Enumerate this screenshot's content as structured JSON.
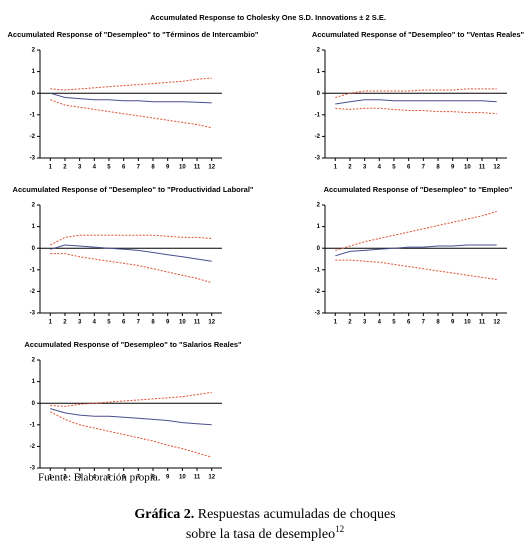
{
  "figure": {
    "title": "Accumulated Response to Cholesky One S.D. Innovations ± 2 S.E.",
    "source": "Fuente: Elaboración propia.",
    "caption_label": "Gráfica 2.",
    "caption_line1": "Respuestas acumuladas de choques",
    "caption_line2": "sobre la tasa de desempleo",
    "caption_note": "12"
  },
  "chart_data": [
    {
      "type": "line",
      "title": "Accumulated Response of \"Desempleo\" to \"Términos de Intercambio\"",
      "x": [
        1,
        2,
        3,
        4,
        5,
        6,
        7,
        8,
        9,
        10,
        11,
        12
      ],
      "xlim": [
        0.3,
        12.7
      ],
      "xticks": [
        1,
        2,
        3,
        4,
        5,
        6,
        7,
        8,
        9,
        10,
        11,
        12
      ],
      "ylim": [
        -3,
        2
      ],
      "yticks": [
        -3,
        -2,
        -1,
        0,
        1,
        2
      ],
      "series": [
        {
          "color": "#4a4f8f",
          "dash": false,
          "values": [
            0,
            -0.2,
            -0.25,
            -0.3,
            -0.3,
            -0.35,
            -0.35,
            -0.4,
            -0.4,
            -0.4,
            -0.42,
            -0.45
          ]
        },
        {
          "color": "#e05030",
          "dash": true,
          "values": [
            0.2,
            0.15,
            0.2,
            0.25,
            0.3,
            0.35,
            0.4,
            0.45,
            0.5,
            0.55,
            0.65,
            0.7
          ]
        },
        {
          "color": "#e05030",
          "dash": true,
          "values": [
            -0.3,
            -0.55,
            -0.65,
            -0.75,
            -0.85,
            -0.95,
            -1.05,
            -1.15,
            -1.25,
            -1.35,
            -1.45,
            -1.6
          ]
        }
      ]
    },
    {
      "type": "line",
      "title": "Accumulated Response of \"Desempleo\" to \"Ventas Reales\"",
      "x": [
        1,
        2,
        3,
        4,
        5,
        6,
        7,
        8,
        9,
        10,
        11,
        12
      ],
      "xlim": [
        0.3,
        12.7
      ],
      "xticks": [
        1,
        2,
        3,
        4,
        5,
        6,
        7,
        8,
        9,
        10,
        11,
        12
      ],
      "ylim": [
        -3,
        2
      ],
      "yticks": [
        -3,
        -2,
        -1,
        0,
        1,
        2
      ],
      "series": [
        {
          "color": "#4a4f8f",
          "dash": false,
          "values": [
            -0.5,
            -0.4,
            -0.3,
            -0.3,
            -0.35,
            -0.35,
            -0.35,
            -0.35,
            -0.35,
            -0.35,
            -0.35,
            -0.4
          ]
        },
        {
          "color": "#e05030",
          "dash": true,
          "values": [
            -0.2,
            0,
            0.1,
            0.1,
            0.1,
            0.1,
            0.15,
            0.15,
            0.15,
            0.2,
            0.2,
            0.2
          ]
        },
        {
          "color": "#e05030",
          "dash": true,
          "values": [
            -0.7,
            -0.75,
            -0.7,
            -0.7,
            -0.75,
            -0.8,
            -0.8,
            -0.85,
            -0.85,
            -0.9,
            -0.9,
            -0.95
          ]
        }
      ]
    },
    {
      "type": "line",
      "title": "Accumulated Response of \"Desempleo\" to \"Productividad Laboral\"",
      "x": [
        1,
        2,
        3,
        4,
        5,
        6,
        7,
        8,
        9,
        10,
        11,
        12
      ],
      "xlim": [
        0.3,
        12.7
      ],
      "xticks": [
        1,
        2,
        3,
        4,
        5,
        6,
        7,
        8,
        9,
        10,
        11,
        12
      ],
      "ylim": [
        -3,
        2
      ],
      "yticks": [
        -3,
        -2,
        -1,
        0,
        1,
        2
      ],
      "series": [
        {
          "color": "#4a4f8f",
          "dash": false,
          "values": [
            -0.05,
            0.15,
            0.1,
            0.05,
            0,
            -0.05,
            -0.1,
            -0.2,
            -0.3,
            -0.4,
            -0.5,
            -0.6
          ]
        },
        {
          "color": "#e05030",
          "dash": true,
          "values": [
            0.15,
            0.5,
            0.6,
            0.6,
            0.6,
            0.6,
            0.6,
            0.6,
            0.55,
            0.5,
            0.5,
            0.45
          ]
        },
        {
          "color": "#e05030",
          "dash": true,
          "values": [
            -0.25,
            -0.25,
            -0.4,
            -0.5,
            -0.6,
            -0.7,
            -0.8,
            -0.95,
            -1.1,
            -1.25,
            -1.4,
            -1.6
          ]
        }
      ]
    },
    {
      "type": "line",
      "title": "Accumulated Response of \"Desempleo\" to \"Empleo\"",
      "x": [
        1,
        2,
        3,
        4,
        5,
        6,
        7,
        8,
        9,
        10,
        11,
        12
      ],
      "xlim": [
        0.3,
        12.7
      ],
      "xticks": [
        1,
        2,
        3,
        4,
        5,
        6,
        7,
        8,
        9,
        10,
        11,
        12
      ],
      "ylim": [
        -3,
        2
      ],
      "yticks": [
        -3,
        -2,
        -1,
        0,
        1,
        2
      ],
      "series": [
        {
          "color": "#4a4f8f",
          "dash": false,
          "values": [
            -0.35,
            -0.15,
            -0.1,
            -0.05,
            0,
            0.05,
            0.05,
            0.1,
            0.1,
            0.15,
            0.15,
            0.15
          ]
        },
        {
          "color": "#e05030",
          "dash": true,
          "values": [
            -0.1,
            0.1,
            0.3,
            0.45,
            0.6,
            0.75,
            0.9,
            1.05,
            1.2,
            1.35,
            1.5,
            1.7
          ]
        },
        {
          "color": "#e05030",
          "dash": true,
          "values": [
            -0.55,
            -0.55,
            -0.6,
            -0.65,
            -0.75,
            -0.85,
            -0.95,
            -1.05,
            -1.15,
            -1.25,
            -1.35,
            -1.45
          ]
        }
      ]
    },
    {
      "type": "line",
      "title": "Accumulated Response of \"Desempleo\" to \"Salarios Reales\"",
      "x": [
        1,
        2,
        3,
        4,
        5,
        6,
        7,
        8,
        9,
        10,
        11,
        12
      ],
      "xlim": [
        0.3,
        12.7
      ],
      "xticks": [
        1,
        2,
        3,
        4,
        5,
        6,
        7,
        8,
        9,
        10,
        11,
        12
      ],
      "ylim": [
        -3,
        2
      ],
      "yticks": [
        -3,
        -2,
        -1,
        0,
        1,
        2
      ],
      "series": [
        {
          "color": "#4a4f8f",
          "dash": false,
          "values": [
            -0.25,
            -0.45,
            -0.55,
            -0.6,
            -0.6,
            -0.65,
            -0.7,
            -0.75,
            -0.8,
            -0.9,
            -0.95,
            -1.0
          ]
        },
        {
          "color": "#e05030",
          "dash": true,
          "values": [
            -0.1,
            -0.15,
            -0.05,
            0,
            0.05,
            0.1,
            0.15,
            0.2,
            0.25,
            0.3,
            0.4,
            0.5
          ]
        },
        {
          "color": "#e05030",
          "dash": true,
          "values": [
            -0.4,
            -0.75,
            -1.0,
            -1.15,
            -1.3,
            -1.45,
            -1.6,
            -1.75,
            -1.95,
            -2.1,
            -2.3,
            -2.5
          ]
        }
      ]
    }
  ]
}
